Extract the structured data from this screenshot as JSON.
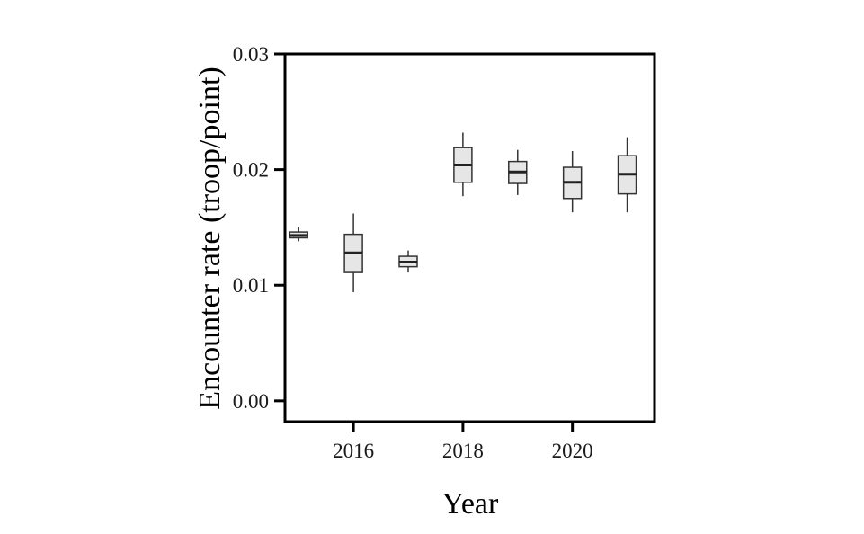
{
  "chart_data": {
    "type": "boxplot",
    "title": "",
    "xlabel": "Year",
    "ylabel": "Encounter rate (troop/point)",
    "xlim": [
      2014.75,
      2021.5
    ],
    "ylim": [
      -0.0018,
      0.03
    ],
    "x_ticks": [
      2016,
      2018,
      2020
    ],
    "x_tick_labels": [
      "2016",
      "2018",
      "2020"
    ],
    "y_ticks": [
      0.0,
      0.01,
      0.02,
      0.03
    ],
    "y_tick_labels": [
      "0.00",
      "0.01",
      "0.02",
      "0.03"
    ],
    "grid": false,
    "series": [
      {
        "x": 2015,
        "min": 0.0138,
        "q1": 0.0141,
        "median": 0.0143,
        "q3": 0.0146,
        "max": 0.015
      },
      {
        "x": 2016,
        "min": 0.0094,
        "q1": 0.0111,
        "median": 0.0128,
        "q3": 0.0144,
        "max": 0.0162
      },
      {
        "x": 2017,
        "min": 0.0111,
        "q1": 0.0116,
        "median": 0.012,
        "q3": 0.0125,
        "max": 0.013
      },
      {
        "x": 2018,
        "min": 0.0177,
        "q1": 0.0189,
        "median": 0.0204,
        "q3": 0.0219,
        "max": 0.0232
      },
      {
        "x": 2019,
        "min": 0.0178,
        "q1": 0.0188,
        "median": 0.0198,
        "q3": 0.0207,
        "max": 0.0217
      },
      {
        "x": 2020,
        "min": 0.0163,
        "q1": 0.0175,
        "median": 0.0189,
        "q3": 0.0202,
        "max": 0.0216
      },
      {
        "x": 2021,
        "min": 0.0163,
        "q1": 0.0179,
        "median": 0.0196,
        "q3": 0.0212,
        "max": 0.0228
      }
    ],
    "colors": {
      "box_fill": "#e6e6e6",
      "box_stroke": "#333333",
      "median": "#222222",
      "whisker": "#333333",
      "frame": "#000000"
    }
  }
}
